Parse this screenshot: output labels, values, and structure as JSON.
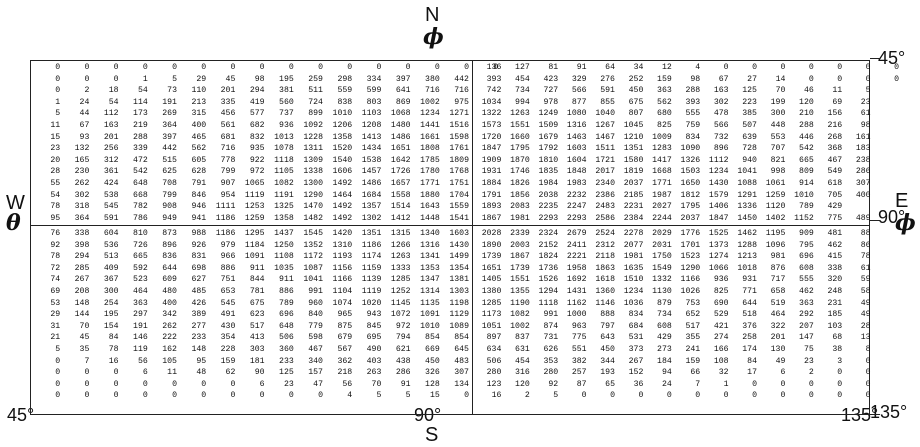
{
  "labels": {
    "north": "N",
    "phi": "ϕ",
    "west": "W",
    "theta": "θ",
    "east": "E",
    "south": "S",
    "right_top": "45°",
    "right_mid": "90°",
    "right_bot": "135°",
    "bottom_left": "45°",
    "bottom_mid": "90°",
    "bottom_right": "135°"
  },
  "tables": {
    "upper_left": [
      [
        "0",
        "0",
        "0",
        "0",
        "0",
        "0",
        "0",
        "0",
        "0",
        "0",
        "0",
        "0",
        "0",
        "0",
        "0",
        "0"
      ],
      [
        "0",
        "0",
        "0",
        "1",
        "5",
        "29",
        "45",
        "98",
        "195",
        "259",
        "298",
        "334",
        "397",
        "380",
        "442"
      ],
      [
        "0",
        "2",
        "18",
        "54",
        "73",
        "110",
        "201",
        "294",
        "381",
        "511",
        "559",
        "599",
        "641",
        "716",
        "716"
      ],
      [
        "1",
        "24",
        "54",
        "114",
        "191",
        "213",
        "335",
        "419",
        "560",
        "724",
        "838",
        "803",
        "869",
        "1002",
        "975"
      ],
      [
        "5",
        "44",
        "112",
        "173",
        "269",
        "315",
        "456",
        "577",
        "737",
        "899",
        "1010",
        "1103",
        "1068",
        "1234",
        "1271"
      ],
      [
        "11",
        "67",
        "163",
        "219",
        "364",
        "400",
        "561",
        "682",
        "936",
        "1092",
        "1206",
        "1208",
        "1480",
        "1441",
        "1516"
      ],
      [
        "15",
        "93",
        "201",
        "288",
        "397",
        "465",
        "681",
        "832",
        "1013",
        "1228",
        "1358",
        "1413",
        "1486",
        "1661",
        "1598"
      ],
      [
        "23",
        "132",
        "256",
        "339",
        "442",
        "562",
        "716",
        "935",
        "1078",
        "1311",
        "1520",
        "1434",
        "1651",
        "1808",
        "1761"
      ],
      [
        "20",
        "165",
        "312",
        "472",
        "515",
        "605",
        "778",
        "922",
        "1118",
        "1309",
        "1540",
        "1538",
        "1642",
        "1785",
        "1809"
      ],
      [
        "28",
        "230",
        "361",
        "542",
        "625",
        "628",
        "799",
        "972",
        "1105",
        "1338",
        "1606",
        "1457",
        "1726",
        "1780",
        "1768"
      ],
      [
        "55",
        "262",
        "424",
        "648",
        "708",
        "791",
        "907",
        "1065",
        "1082",
        "1300",
        "1492",
        "1486",
        "1657",
        "1771",
        "1751"
      ],
      [
        "54",
        "302",
        "538",
        "668",
        "799",
        "846",
        "954",
        "1119",
        "1191",
        "1290",
        "1464",
        "1684",
        "1558",
        "1880",
        "1704"
      ],
      [
        "78",
        "318",
        "545",
        "782",
        "908",
        "946",
        "1111",
        "1253",
        "1325",
        "1470",
        "1492",
        "1357",
        "1514",
        "1643",
        "1559"
      ],
      [
        "95",
        "364",
        "591",
        "786",
        "949",
        "941",
        "1186",
        "1259",
        "1358",
        "1482",
        "1492",
        "1302",
        "1412",
        "1448",
        "1541"
      ]
    ],
    "upper_right": [
      [
        "136",
        "127",
        "81",
        "91",
        "64",
        "34",
        "12",
        "4",
        "0",
        "0",
        "0",
        "0",
        "0",
        "0",
        "0",
        "0"
      ],
      [
        "393",
        "454",
        "423",
        "329",
        "276",
        "252",
        "159",
        "98",
        "67",
        "27",
        "14",
        "0",
        "0",
        "0",
        "0"
      ],
      [
        "742",
        "734",
        "727",
        "566",
        "591",
        "450",
        "363",
        "288",
        "163",
        "125",
        "70",
        "46",
        "11",
        "5"
      ],
      [
        "1034",
        "994",
        "978",
        "877",
        "855",
        "675",
        "562",
        "393",
        "302",
        "223",
        "199",
        "120",
        "69",
        "23"
      ],
      [
        "1322",
        "1263",
        "1249",
        "1080",
        "1040",
        "807",
        "680",
        "555",
        "478",
        "385",
        "300",
        "210",
        "156",
        "61"
      ],
      [
        "1573",
        "1551",
        "1509",
        "1316",
        "1267",
        "1045",
        "825",
        "759",
        "566",
        "507",
        "448",
        "288",
        "216",
        "98"
      ],
      [
        "1720",
        "1660",
        "1679",
        "1463",
        "1467",
        "1210",
        "1009",
        "834",
        "732",
        "639",
        "553",
        "446",
        "268",
        "161"
      ],
      [
        "1847",
        "1795",
        "1792",
        "1603",
        "1511",
        "1351",
        "1283",
        "1090",
        "896",
        "728",
        "707",
        "542",
        "368",
        "183"
      ],
      [
        "1909",
        "1870",
        "1810",
        "1604",
        "1721",
        "1580",
        "1417",
        "1326",
        "1112",
        "940",
        "821",
        "665",
        "467",
        "238"
      ],
      [
        "1931",
        "1746",
        "1835",
        "1848",
        "2017",
        "1819",
        "1668",
        "1503",
        "1234",
        "1041",
        "998",
        "809",
        "549",
        "286"
      ],
      [
        "1884",
        "1826",
        "1984",
        "1983",
        "2340",
        "2037",
        "1771",
        "1650",
        "1430",
        "1088",
        "1061",
        "914",
        "618",
        "307"
      ],
      [
        "1791",
        "1856",
        "2038",
        "2232",
        "2386",
        "2185",
        "1987",
        "1812",
        "1579",
        "1291",
        "1259",
        "1010",
        "705",
        "400"
      ],
      [
        "1893",
        "2083",
        "2235",
        "2247",
        "2483",
        "2231",
        "2027",
        "1795",
        "1406",
        "1336",
        "1120",
        "789",
        "429"
      ],
      [
        "1867",
        "1981",
        "2293",
        "2293",
        "2586",
        "2384",
        "2244",
        "2037",
        "1847",
        "1450",
        "1402",
        "1152",
        "775",
        "489"
      ]
    ],
    "lower_left": [
      [
        "76",
        "338",
        "604",
        "810",
        "873",
        "988",
        "1186",
        "1295",
        "1437",
        "1545",
        "1420",
        "1351",
        "1315",
        "1340",
        "1603"
      ],
      [
        "92",
        "398",
        "536",
        "726",
        "896",
        "926",
        "979",
        "1184",
        "1250",
        "1352",
        "1310",
        "1186",
        "1266",
        "1316",
        "1430"
      ],
      [
        "78",
        "294",
        "513",
        "665",
        "836",
        "831",
        "966",
        "1091",
        "1108",
        "1172",
        "1193",
        "1174",
        "1263",
        "1341",
        "1499"
      ],
      [
        "72",
        "285",
        "409",
        "592",
        "644",
        "698",
        "886",
        "911",
        "1035",
        "1087",
        "1156",
        "1159",
        "1333",
        "1353",
        "1354"
      ],
      [
        "74",
        "267",
        "367",
        "523",
        "609",
        "627",
        "751",
        "844",
        "911",
        "1041",
        "1166",
        "1139",
        "1285",
        "1347",
        "1381"
      ],
      [
        "69",
        "208",
        "300",
        "464",
        "480",
        "485",
        "653",
        "781",
        "886",
        "991",
        "1104",
        "1119",
        "1252",
        "1314",
        "1303"
      ],
      [
        "53",
        "148",
        "254",
        "363",
        "400",
        "426",
        "545",
        "675",
        "789",
        "960",
        "1074",
        "1020",
        "1145",
        "1135",
        "1198"
      ],
      [
        "29",
        "144",
        "195",
        "297",
        "342",
        "389",
        "491",
        "623",
        "696",
        "840",
        "965",
        "943",
        "1072",
        "1091",
        "1129"
      ],
      [
        "31",
        "70",
        "154",
        "191",
        "262",
        "277",
        "430",
        "517",
        "648",
        "779",
        "875",
        "845",
        "972",
        "1010",
        "1089"
      ],
      [
        "21",
        "45",
        "84",
        "146",
        "222",
        "233",
        "354",
        "413",
        "506",
        "598",
        "679",
        "695",
        "794",
        "854",
        "854"
      ],
      [
        "5",
        "35",
        "78",
        "119",
        "162",
        "148",
        "228",
        "303",
        "360",
        "467",
        "567",
        "490",
        "621",
        "669",
        "645"
      ],
      [
        "0",
        "7",
        "16",
        "56",
        "105",
        "95",
        "159",
        "181",
        "233",
        "340",
        "362",
        "403",
        "438",
        "450",
        "483"
      ],
      [
        "0",
        "0",
        "0",
        "6",
        "11",
        "48",
        "62",
        "90",
        "125",
        "157",
        "218",
        "263",
        "286",
        "326",
        "307"
      ],
      [
        "0",
        "0",
        "0",
        "0",
        "0",
        "0",
        "0",
        "6",
        "23",
        "47",
        "56",
        "70",
        "91",
        "128",
        "134"
      ],
      [
        "0",
        "0",
        "0",
        "0",
        "0",
        "0",
        "0",
        "0",
        "0",
        "0",
        "4",
        "5",
        "5",
        "15",
        "0"
      ]
    ],
    "lower_right": [
      [
        "2028",
        "2339",
        "2324",
        "2679",
        "2524",
        "2278",
        "2029",
        "1776",
        "1525",
        "1462",
        "1195",
        "909",
        "481",
        "88"
      ],
      [
        "1890",
        "2003",
        "2152",
        "2411",
        "2312",
        "2077",
        "2031",
        "1701",
        "1373",
        "1288",
        "1096",
        "795",
        "462",
        "86"
      ],
      [
        "1739",
        "1867",
        "1824",
        "2221",
        "2118",
        "1981",
        "1750",
        "1523",
        "1274",
        "1213",
        "981",
        "696",
        "415",
        "78"
      ],
      [
        "1651",
        "1739",
        "1736",
        "1958",
        "1863",
        "1635",
        "1549",
        "1290",
        "1066",
        "1018",
        "876",
        "608",
        "338",
        "61"
      ],
      [
        "1405",
        "1551",
        "1526",
        "1692",
        "1618",
        "1510",
        "1332",
        "1166",
        "936",
        "931",
        "717",
        "555",
        "320",
        "59"
      ],
      [
        "1380",
        "1355",
        "1294",
        "1431",
        "1360",
        "1234",
        "1130",
        "1026",
        "825",
        "771",
        "658",
        "462",
        "248",
        "58"
      ],
      [
        "1285",
        "1190",
        "1118",
        "1162",
        "1146",
        "1036",
        "879",
        "753",
        "690",
        "644",
        "519",
        "363",
        "231",
        "49"
      ],
      [
        "1173",
        "1082",
        "991",
        "1000",
        "888",
        "834",
        "734",
        "652",
        "529",
        "518",
        "464",
        "292",
        "185",
        "49"
      ],
      [
        "1051",
        "1002",
        "874",
        "963",
        "797",
        "684",
        "608",
        "517",
        "421",
        "376",
        "322",
        "207",
        "103",
        "28"
      ],
      [
        "897",
        "837",
        "731",
        "775",
        "643",
        "531",
        "429",
        "355",
        "274",
        "258",
        "201",
        "147",
        "68",
        "13"
      ],
      [
        "634",
        "631",
        "626",
        "551",
        "450",
        "373",
        "273",
        "241",
        "166",
        "174",
        "130",
        "75",
        "38",
        "8"
      ],
      [
        "506",
        "454",
        "353",
        "382",
        "344",
        "267",
        "184",
        "159",
        "108",
        "84",
        "49",
        "23",
        "3",
        "0"
      ],
      [
        "280",
        "316",
        "280",
        "257",
        "193",
        "152",
        "94",
        "66",
        "32",
        "17",
        "6",
        "2",
        "0",
        "0"
      ],
      [
        "123",
        "120",
        "92",
        "87",
        "65",
        "36",
        "24",
        "7",
        "1",
        "0",
        "0",
        "0",
        "0",
        "0"
      ],
      [
        "16",
        "2",
        "5",
        "0",
        "0",
        "0",
        "0",
        "0",
        "0",
        "0",
        "0",
        "0",
        "0",
        "0"
      ]
    ]
  }
}
